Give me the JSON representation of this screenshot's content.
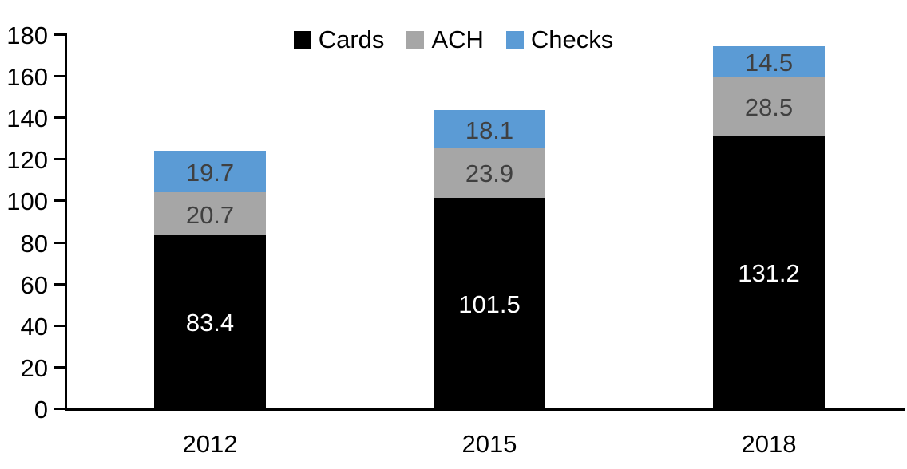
{
  "chart_data": {
    "type": "bar",
    "stacked": true,
    "title": "",
    "xlabel": "",
    "ylabel": "",
    "categories": [
      "2012",
      "2015",
      "2018"
    ],
    "series": [
      {
        "name": "Cards",
        "color": "#000000",
        "label_color": "#ffffff",
        "values": [
          83.4,
          101.5,
          131.2
        ]
      },
      {
        "name": "ACH",
        "color": "#a6a6a6",
        "label_color": "#404040",
        "values": [
          20.7,
          23.9,
          28.5
        ]
      },
      {
        "name": "Checks",
        "color": "#5b9bd5",
        "label_color": "#404040",
        "values": [
          19.7,
          18.1,
          14.5
        ]
      }
    ],
    "totals": [
      123.8,
      143.5,
      174.2
    ],
    "ylim": [
      0,
      180
    ],
    "yticks": [
      0,
      20,
      40,
      60,
      80,
      100,
      120,
      140,
      160,
      180
    ],
    "grid": false,
    "legend_position": "top-center",
    "axis_color": "#000000",
    "background_color": "#ffffff"
  }
}
